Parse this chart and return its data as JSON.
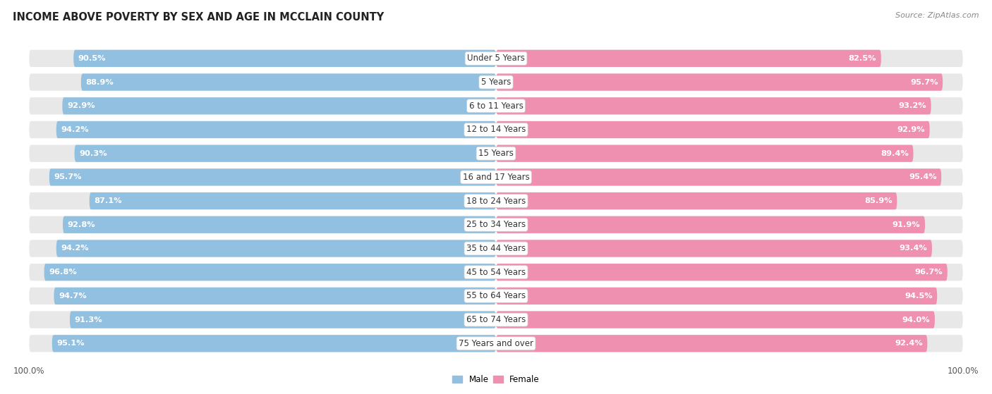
{
  "title": "INCOME ABOVE POVERTY BY SEX AND AGE IN MCCLAIN COUNTY",
  "source": "Source: ZipAtlas.com",
  "categories": [
    "Under 5 Years",
    "5 Years",
    "6 to 11 Years",
    "12 to 14 Years",
    "15 Years",
    "16 and 17 Years",
    "18 to 24 Years",
    "25 to 34 Years",
    "35 to 44 Years",
    "45 to 54 Years",
    "55 to 64 Years",
    "65 to 74 Years",
    "75 Years and over"
  ],
  "male": [
    90.5,
    88.9,
    92.9,
    94.2,
    90.3,
    95.7,
    87.1,
    92.8,
    94.2,
    96.8,
    94.7,
    91.3,
    95.1
  ],
  "female": [
    82.5,
    95.7,
    93.2,
    92.9,
    89.4,
    95.4,
    85.9,
    91.9,
    93.4,
    96.7,
    94.5,
    94.0,
    92.4
  ],
  "male_color": "#92c0e0",
  "male_color_dark": "#5ba3d0",
  "female_color": "#f090b0",
  "female_color_light": "#f4b8cc",
  "male_label": "Male",
  "female_label": "Female",
  "axis_max": 100.0,
  "bg_color": "#ffffff",
  "track_color": "#e8e8e8",
  "title_fontsize": 10.5,
  "label_fontsize": 8.5,
  "value_fontsize": 8.2,
  "source_fontsize": 8
}
